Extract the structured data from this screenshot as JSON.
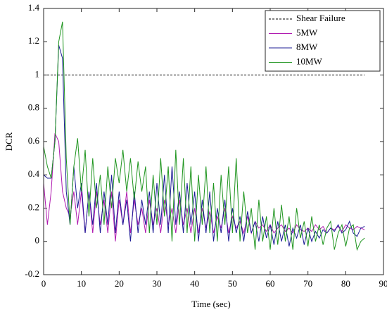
{
  "chart_data": {
    "type": "line",
    "xlabel": "Time (sec)",
    "ylabel": "DCR",
    "x": [
      0,
      1,
      2,
      3,
      4,
      5,
      6,
      7,
      8,
      9,
      10,
      11,
      12,
      13,
      14,
      15,
      16,
      17,
      18,
      19,
      20,
      21,
      22,
      23,
      24,
      25,
      26,
      27,
      28,
      29,
      30,
      31,
      32,
      33,
      34,
      35,
      36,
      37,
      38,
      39,
      40,
      41,
      42,
      43,
      44,
      45,
      46,
      47,
      48,
      49,
      50,
      51,
      52,
      53,
      54,
      55,
      56,
      57,
      58,
      59,
      60,
      61,
      62,
      63,
      64,
      65,
      66,
      67,
      68,
      69,
      70,
      71,
      72,
      73,
      74,
      75,
      76,
      77,
      78,
      79,
      80,
      81,
      82,
      83,
      84,
      85
    ],
    "series": [
      {
        "name": "Shear Failure",
        "color": "#000000",
        "dash": true,
        "x": [
          0,
          85
        ],
        "values": [
          1,
          1
        ]
      },
      {
        "name": "5MW",
        "color": "#b01ab0",
        "values": [
          0.35,
          0.1,
          0.3,
          0.65,
          0.6,
          0.3,
          0.2,
          0.15,
          0.3,
          0.1,
          0.3,
          0.05,
          0.3,
          0.05,
          0.3,
          0.1,
          0.25,
          0.05,
          0.3,
          0.0,
          0.25,
          0.1,
          0.3,
          0.05,
          0.25,
          0.1,
          0.2,
          0.05,
          0.25,
          0.1,
          0.2,
          0.05,
          0.25,
          0.1,
          0.2,
          0.05,
          0.25,
          0.1,
          0.2,
          0.05,
          0.2,
          0.05,
          0.2,
          0.08,
          0.18,
          0.05,
          0.15,
          0.08,
          0.2,
          0.05,
          0.15,
          0.08,
          0.12,
          0.05,
          0.15,
          0.05,
          0.12,
          0.08,
          0.1,
          0.06,
          0.1,
          0.05,
          0.08,
          0.1,
          0.06,
          0.08,
          0.05,
          0.1,
          0.07,
          0.06,
          0.08,
          0.06,
          0.1,
          0.07,
          0.09,
          0.05,
          0.08,
          0.07,
          0.09,
          0.06,
          0.1,
          0.08,
          0.07,
          0.09,
          0.08,
          0.07
        ]
      },
      {
        "name": "8MW",
        "color": "#1c1c96",
        "values": [
          0.4,
          0.38,
          0.38,
          0.6,
          1.18,
          1.1,
          0.3,
          0.1,
          0.45,
          0.2,
          0.35,
          0.05,
          0.3,
          0.1,
          0.35,
          0.05,
          0.3,
          0.1,
          0.4,
          0.05,
          0.3,
          0.1,
          0.25,
          0.0,
          0.3,
          0.05,
          0.25,
          0.1,
          0.3,
          0.05,
          0.35,
          0.1,
          0.4,
          0.05,
          0.45,
          0.1,
          0.3,
          0.05,
          0.35,
          0.1,
          0.3,
          0.0,
          0.25,
          0.05,
          0.3,
          0.0,
          0.2,
          0.05,
          0.25,
          0.0,
          0.2,
          0.05,
          0.15,
          0.0,
          0.18,
          0.05,
          0.12,
          0.0,
          0.15,
          0.02,
          0.1,
          -0.02,
          0.12,
          0.0,
          0.1,
          -0.03,
          0.08,
          0.02,
          0.1,
          -0.02,
          0.08,
          0.0,
          0.06,
          0.02,
          0.07,
          0.05,
          0.08,
          0.06,
          0.1,
          0.05,
          0.07,
          0.12,
          0.05,
          0.03,
          0.08,
          0.09
        ]
      },
      {
        "name": "10MW",
        "color": "#1f951f",
        "values": [
          0.57,
          0.45,
          0.38,
          0.6,
          1.2,
          1.32,
          0.5,
          0.1,
          0.45,
          0.62,
          0.3,
          0.55,
          0.15,
          0.5,
          0.2,
          0.4,
          0.1,
          0.45,
          0.2,
          0.5,
          0.35,
          0.55,
          0.3,
          0.5,
          0.25,
          0.48,
          0.3,
          0.45,
          0.05,
          0.4,
          0.1,
          0.5,
          0.15,
          0.45,
          0.0,
          0.55,
          0.1,
          0.5,
          0.05,
          0.45,
          0.0,
          0.4,
          0.1,
          0.45,
          0.05,
          0.35,
          0.0,
          0.4,
          0.1,
          0.45,
          0.05,
          0.5,
          0.0,
          0.3,
          0.05,
          0.2,
          -0.05,
          0.25,
          0.0,
          0.15,
          -0.05,
          0.2,
          -0.02,
          0.22,
          0.0,
          0.15,
          -0.05,
          0.2,
          0.02,
          0.12,
          -0.03,
          0.15,
          0.0,
          0.1,
          -0.02,
          0.08,
          0.12,
          -0.05,
          0.05,
          0.1,
          -0.03,
          0.08,
          0.1,
          -0.05,
          0.0,
          0.02
        ]
      }
    ],
    "xlim": [
      0,
      90
    ],
    "xticks": [
      0,
      10,
      20,
      30,
      40,
      50,
      60,
      70,
      80,
      90
    ],
    "ylim": [
      -0.2,
      1.4
    ],
    "yticks": [
      -0.2,
      0,
      0.2,
      0.4,
      0.6,
      0.8,
      1,
      1.2,
      1.4
    ],
    "legend": "upper right"
  }
}
